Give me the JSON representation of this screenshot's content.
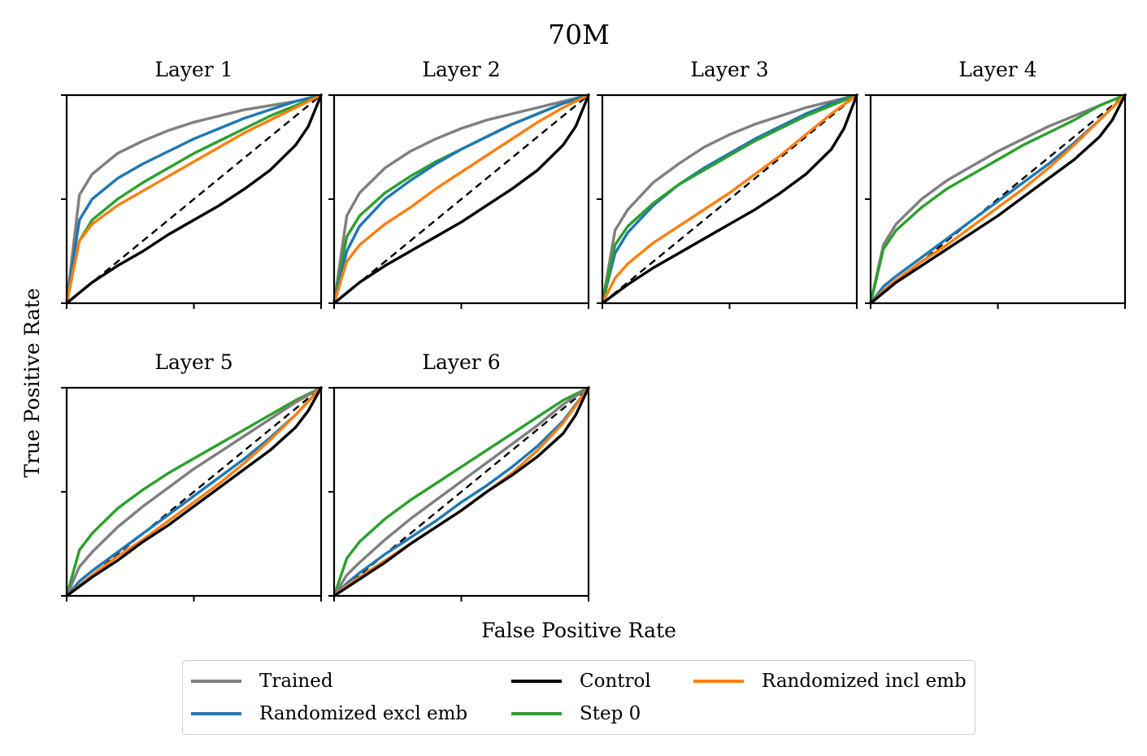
{
  "chart_data": {
    "type": "line",
    "title": "70M",
    "xlabel": "False Positive Rate",
    "ylabel": "True Positive Rate",
    "xlim": [
      0,
      1
    ],
    "ylim": [
      0,
      1
    ],
    "colors": {
      "Trained": "#7f7f7f",
      "Randomized excl emb": "#1f77b4",
      "Control": "#000000",
      "Step 0": "#2ca02c",
      "Randomized incl emb": "#ff7f0e",
      "Chance": "#000000"
    },
    "legend": [
      {
        "label": "Trained",
        "color": "#7f7f7f"
      },
      {
        "label": "Control",
        "color": "#000000"
      },
      {
        "label": "Randomized incl emb",
        "color": "#ff7f0e"
      },
      {
        "label": "Randomized excl emb",
        "color": "#1f77b4"
      },
      {
        "label": "Step 0",
        "color": "#2ca02c"
      }
    ],
    "subplots": [
      {
        "title": "Layer 1",
        "series": [
          {
            "name": "Trained",
            "x": [
              0,
              0.05,
              0.1,
              0.2,
              0.3,
              0.4,
              0.5,
              0.6,
              0.7,
              0.8,
              0.9,
              1
            ],
            "y": [
              0,
              0.52,
              0.62,
              0.72,
              0.78,
              0.83,
              0.87,
              0.9,
              0.93,
              0.95,
              0.97,
              1
            ]
          },
          {
            "name": "Randomized excl emb",
            "x": [
              0,
              0.05,
              0.1,
              0.2,
              0.3,
              0.4,
              0.5,
              0.6,
              0.7,
              0.8,
              0.9,
              1
            ],
            "y": [
              0,
              0.4,
              0.5,
              0.6,
              0.67,
              0.73,
              0.79,
              0.84,
              0.89,
              0.93,
              0.97,
              1
            ]
          },
          {
            "name": "Step 0",
            "x": [
              0,
              0.05,
              0.1,
              0.2,
              0.3,
              0.4,
              0.5,
              0.6,
              0.7,
              0.8,
              0.9,
              1
            ],
            "y": [
              0,
              0.3,
              0.4,
              0.5,
              0.58,
              0.65,
              0.72,
              0.78,
              0.84,
              0.9,
              0.95,
              1
            ]
          },
          {
            "name": "Randomized incl emb",
            "x": [
              0,
              0.05,
              0.1,
              0.2,
              0.3,
              0.4,
              0.5,
              0.6,
              0.7,
              0.8,
              0.9,
              1
            ],
            "y": [
              0,
              0.3,
              0.38,
              0.47,
              0.54,
              0.61,
              0.68,
              0.75,
              0.82,
              0.88,
              0.94,
              1
            ]
          },
          {
            "name": "Control",
            "x": [
              0,
              0.1,
              0.2,
              0.3,
              0.4,
              0.5,
              0.6,
              0.7,
              0.8,
              0.9,
              0.95,
              1
            ],
            "y": [
              0,
              0.1,
              0.18,
              0.25,
              0.33,
              0.4,
              0.47,
              0.55,
              0.64,
              0.76,
              0.85,
              1
            ]
          }
        ]
      },
      {
        "title": "Layer 2",
        "series": [
          {
            "name": "Trained",
            "x": [
              0,
              0.05,
              0.1,
              0.2,
              0.3,
              0.4,
              0.5,
              0.6,
              0.7,
              0.8,
              0.9,
              1
            ],
            "y": [
              0,
              0.42,
              0.53,
              0.65,
              0.73,
              0.79,
              0.84,
              0.88,
              0.91,
              0.94,
              0.97,
              1
            ]
          },
          {
            "name": "Step 0",
            "x": [
              0,
              0.05,
              0.1,
              0.2,
              0.3,
              0.4,
              0.5,
              0.6,
              0.7,
              0.8,
              0.9,
              1
            ],
            "y": [
              0,
              0.32,
              0.42,
              0.53,
              0.61,
              0.68,
              0.74,
              0.8,
              0.86,
              0.91,
              0.96,
              1
            ]
          },
          {
            "name": "Randomized excl emb",
            "x": [
              0,
              0.05,
              0.1,
              0.2,
              0.3,
              0.4,
              0.5,
              0.6,
              0.7,
              0.8,
              0.9,
              1
            ],
            "y": [
              0,
              0.25,
              0.37,
              0.5,
              0.59,
              0.67,
              0.74,
              0.8,
              0.86,
              0.91,
              0.96,
              1
            ]
          },
          {
            "name": "Randomized incl emb",
            "x": [
              0,
              0.05,
              0.1,
              0.2,
              0.3,
              0.4,
              0.5,
              0.6,
              0.7,
              0.8,
              0.9,
              1
            ],
            "y": [
              0,
              0.2,
              0.28,
              0.38,
              0.46,
              0.55,
              0.63,
              0.71,
              0.79,
              0.87,
              0.94,
              1
            ]
          },
          {
            "name": "Control",
            "x": [
              0,
              0.1,
              0.2,
              0.3,
              0.4,
              0.5,
              0.6,
              0.7,
              0.8,
              0.9,
              0.95,
              1
            ],
            "y": [
              0,
              0.1,
              0.18,
              0.25,
              0.32,
              0.39,
              0.47,
              0.55,
              0.64,
              0.76,
              0.85,
              1
            ]
          }
        ]
      },
      {
        "title": "Layer 3",
        "series": [
          {
            "name": "Trained",
            "x": [
              0,
              0.05,
              0.1,
              0.2,
              0.3,
              0.4,
              0.5,
              0.6,
              0.7,
              0.8,
              0.9,
              1
            ],
            "y": [
              0,
              0.35,
              0.45,
              0.58,
              0.67,
              0.75,
              0.81,
              0.86,
              0.9,
              0.94,
              0.97,
              1
            ]
          },
          {
            "name": "Randomized excl emb",
            "x": [
              0,
              0.05,
              0.1,
              0.2,
              0.3,
              0.4,
              0.5,
              0.6,
              0.7,
              0.8,
              0.9,
              1
            ],
            "y": [
              0,
              0.24,
              0.34,
              0.47,
              0.57,
              0.65,
              0.72,
              0.79,
              0.85,
              0.91,
              0.96,
              1
            ]
          },
          {
            "name": "Step 0",
            "x": [
              0,
              0.05,
              0.1,
              0.2,
              0.3,
              0.4,
              0.5,
              0.6,
              0.7,
              0.8,
              0.9,
              1
            ],
            "y": [
              0,
              0.28,
              0.37,
              0.48,
              0.57,
              0.64,
              0.71,
              0.78,
              0.84,
              0.9,
              0.95,
              1
            ]
          },
          {
            "name": "Randomized incl emb",
            "x": [
              0,
              0.05,
              0.1,
              0.2,
              0.3,
              0.4,
              0.5,
              0.6,
              0.7,
              0.8,
              0.9,
              1
            ],
            "y": [
              0,
              0.12,
              0.19,
              0.29,
              0.37,
              0.45,
              0.53,
              0.62,
              0.71,
              0.81,
              0.91,
              1
            ]
          },
          {
            "name": "Control",
            "x": [
              0,
              0.1,
              0.2,
              0.3,
              0.4,
              0.5,
              0.6,
              0.7,
              0.8,
              0.9,
              0.95,
              1
            ],
            "y": [
              0,
              0.09,
              0.17,
              0.24,
              0.31,
              0.38,
              0.45,
              0.53,
              0.62,
              0.74,
              0.84,
              1
            ]
          }
        ]
      },
      {
        "title": "Layer 4",
        "series": [
          {
            "name": "Trained",
            "x": [
              0,
              0.05,
              0.1,
              0.2,
              0.3,
              0.4,
              0.5,
              0.6,
              0.7,
              0.8,
              0.9,
              1
            ],
            "y": [
              0,
              0.28,
              0.38,
              0.5,
              0.59,
              0.66,
              0.73,
              0.79,
              0.85,
              0.9,
              0.95,
              1
            ]
          },
          {
            "name": "Step 0",
            "x": [
              0,
              0.05,
              0.1,
              0.2,
              0.3,
              0.4,
              0.5,
              0.6,
              0.7,
              0.8,
              0.9,
              1
            ],
            "y": [
              0,
              0.26,
              0.35,
              0.46,
              0.55,
              0.62,
              0.69,
              0.76,
              0.82,
              0.88,
              0.95,
              1
            ]
          },
          {
            "name": "Randomized excl emb",
            "x": [
              0,
              0.05,
              0.1,
              0.2,
              0.3,
              0.4,
              0.5,
              0.6,
              0.7,
              0.8,
              0.9,
              1
            ],
            "y": [
              0,
              0.08,
              0.13,
              0.22,
              0.31,
              0.4,
              0.49,
              0.58,
              0.67,
              0.77,
              0.88,
              1
            ]
          },
          {
            "name": "Randomized incl emb",
            "x": [
              0,
              0.05,
              0.1,
              0.2,
              0.3,
              0.4,
              0.5,
              0.6,
              0.7,
              0.8,
              0.9,
              1
            ],
            "y": [
              0,
              0.06,
              0.11,
              0.2,
              0.28,
              0.37,
              0.46,
              0.55,
              0.65,
              0.76,
              0.88,
              1
            ]
          },
          {
            "name": "Control",
            "x": [
              0,
              0.1,
              0.2,
              0.3,
              0.4,
              0.5,
              0.6,
              0.7,
              0.8,
              0.9,
              0.95,
              1
            ],
            "y": [
              0,
              0.1,
              0.18,
              0.26,
              0.34,
              0.42,
              0.51,
              0.6,
              0.69,
              0.8,
              0.88,
              1
            ]
          }
        ]
      },
      {
        "title": "Layer 5",
        "series": [
          {
            "name": "Step 0",
            "x": [
              0,
              0.05,
              0.1,
              0.2,
              0.3,
              0.4,
              0.5,
              0.6,
              0.7,
              0.8,
              0.9,
              1
            ],
            "y": [
              0,
              0.22,
              0.3,
              0.42,
              0.51,
              0.59,
              0.66,
              0.73,
              0.8,
              0.87,
              0.94,
              1
            ]
          },
          {
            "name": "Trained",
            "x": [
              0,
              0.05,
              0.1,
              0.2,
              0.3,
              0.4,
              0.5,
              0.6,
              0.7,
              0.8,
              0.9,
              1
            ],
            "y": [
              0,
              0.14,
              0.21,
              0.33,
              0.43,
              0.52,
              0.61,
              0.69,
              0.77,
              0.85,
              0.93,
              1
            ]
          },
          {
            "name": "Randomized excl emb",
            "x": [
              0,
              0.05,
              0.1,
              0.2,
              0.3,
              0.4,
              0.5,
              0.6,
              0.7,
              0.8,
              0.9,
              1
            ],
            "y": [
              0,
              0.07,
              0.12,
              0.21,
              0.3,
              0.39,
              0.48,
              0.57,
              0.66,
              0.76,
              0.87,
              1
            ]
          },
          {
            "name": "Randomized incl emb",
            "x": [
              0,
              0.05,
              0.1,
              0.2,
              0.3,
              0.4,
              0.5,
              0.6,
              0.7,
              0.8,
              0.9,
              1
            ],
            "y": [
              0,
              0.05,
              0.1,
              0.19,
              0.27,
              0.36,
              0.45,
              0.54,
              0.64,
              0.75,
              0.87,
              1
            ]
          },
          {
            "name": "Control",
            "x": [
              0,
              0.1,
              0.2,
              0.3,
              0.4,
              0.5,
              0.6,
              0.7,
              0.8,
              0.9,
              0.95,
              1
            ],
            "y": [
              0,
              0.09,
              0.17,
              0.26,
              0.34,
              0.43,
              0.52,
              0.61,
              0.7,
              0.81,
              0.89,
              1
            ]
          }
        ]
      },
      {
        "title": "Layer 6",
        "series": [
          {
            "name": "Step 0",
            "x": [
              0,
              0.05,
              0.1,
              0.2,
              0.3,
              0.4,
              0.5,
              0.6,
              0.7,
              0.8,
              0.9,
              1
            ],
            "y": [
              0,
              0.18,
              0.26,
              0.37,
              0.46,
              0.54,
              0.62,
              0.7,
              0.78,
              0.86,
              0.94,
              1
            ]
          },
          {
            "name": "Trained",
            "x": [
              0,
              0.05,
              0.1,
              0.2,
              0.3,
              0.4,
              0.5,
              0.6,
              0.7,
              0.8,
              0.9,
              1
            ],
            "y": [
              0,
              0.1,
              0.16,
              0.27,
              0.37,
              0.46,
              0.55,
              0.64,
              0.73,
              0.82,
              0.92,
              1
            ]
          },
          {
            "name": "Randomized excl emb",
            "x": [
              0,
              0.05,
              0.1,
              0.2,
              0.3,
              0.4,
              0.5,
              0.6,
              0.7,
              0.8,
              0.9,
              1
            ],
            "y": [
              0,
              0.06,
              0.11,
              0.2,
              0.28,
              0.36,
              0.45,
              0.53,
              0.62,
              0.72,
              0.84,
              1
            ]
          },
          {
            "name": "Randomized incl emb",
            "x": [
              0,
              0.05,
              0.1,
              0.2,
              0.3,
              0.4,
              0.5,
              0.6,
              0.7,
              0.8,
              0.9,
              1
            ],
            "y": [
              0,
              0.05,
              0.09,
              0.17,
              0.25,
              0.33,
              0.41,
              0.5,
              0.59,
              0.7,
              0.83,
              1
            ]
          },
          {
            "name": "Control",
            "x": [
              0,
              0.1,
              0.2,
              0.3,
              0.4,
              0.5,
              0.6,
              0.7,
              0.8,
              0.9,
              0.95,
              1
            ],
            "y": [
              0,
              0.08,
              0.16,
              0.25,
              0.33,
              0.41,
              0.5,
              0.58,
              0.67,
              0.78,
              0.87,
              1
            ]
          }
        ]
      }
    ]
  }
}
